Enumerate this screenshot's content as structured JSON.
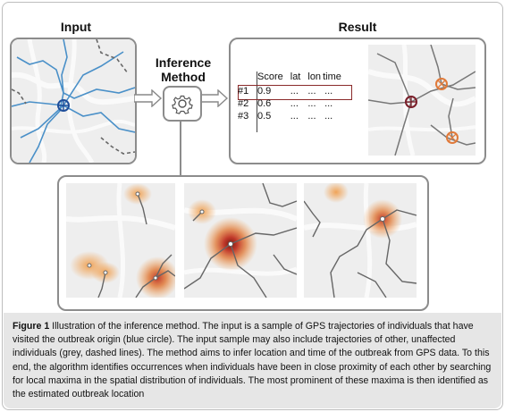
{
  "labels": {
    "input_title": "Input",
    "result_title": "Result",
    "method_line1": "Inference",
    "method_line2": "Method"
  },
  "table": {
    "headers": [
      "",
      "Score",
      "lat",
      "lon",
      "time"
    ],
    "rows": [
      [
        "#1",
        "0.9",
        "...",
        "...",
        "..."
      ],
      [
        "#2",
        "0.6",
        "...",
        "...",
        "..."
      ],
      [
        "#3",
        "0.5",
        "...",
        "...",
        "..."
      ]
    ]
  },
  "caption": {
    "fig_label": "Figure 1",
    "text": " Illustration of the inference method. The input is a sample of GPS trajectories of individuals that have visited the outbreak origin (blue circle). The input sample may also include trajectories of other, unaffected individuals (grey, dashed lines). The method aims to infer location and time of the outbreak from GPS data. To this end, the algorithm identifies occurrences when individuals have been in close proximity of each other by searching for local maxima in the spatial distribution of individuals. The most prominent of these maxima is then identified as the estimated outbreak location"
  },
  "colors": {
    "trajectory_blue": "#4a90c8",
    "origin_marker": "#1f4e9a",
    "estimate_marker": "#7a1f2a",
    "candidate_marker": "#e07a3a",
    "heat_core": "#c0392b",
    "heat_glow": "#f0a050",
    "map_bg": "#eeeeee"
  }
}
